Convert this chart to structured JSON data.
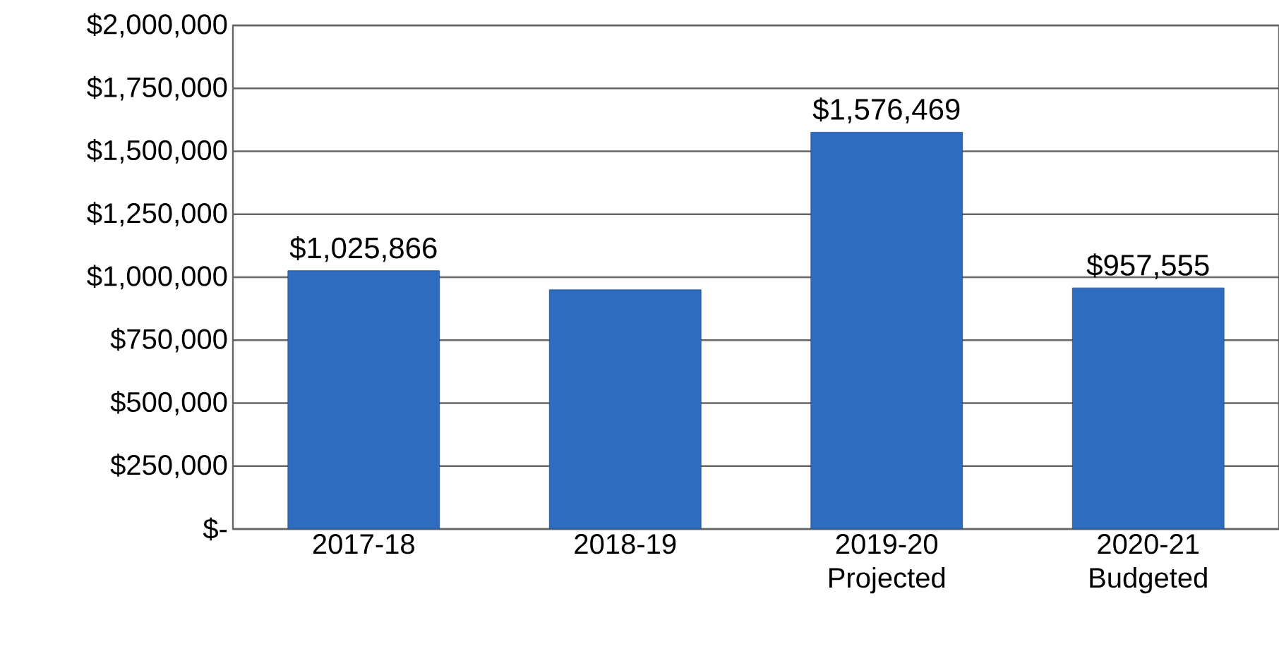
{
  "chart_data": {
    "type": "bar",
    "categories": [
      "2017-18",
      "2018-19",
      "2019-20 Projected",
      "2020-21 Budgeted"
    ],
    "values": [
      1025866,
      950000,
      1576469,
      957555
    ],
    "value_labels": [
      "$1,025,866",
      null,
      "$1,576,469",
      "$957,555"
    ],
    "color": "#2f6cc0",
    "ylim": [
      0,
      2000000
    ],
    "yticks": [
      {
        "value": 0,
        "label": "$-"
      },
      {
        "value": 250000,
        "label": "$250,000"
      },
      {
        "value": 500000,
        "label": "$500,000"
      },
      {
        "value": 750000,
        "label": "$750,000"
      },
      {
        "value": 1000000,
        "label": "$1,000,000"
      },
      {
        "value": 1250000,
        "label": "$1,250,000"
      },
      {
        "value": 1500000,
        "label": "$1,500,000"
      },
      {
        "value": 1750000,
        "label": "$1,750,000"
      },
      {
        "value": 2000000,
        "label": "$2,000,000"
      }
    ],
    "grid": "y"
  }
}
